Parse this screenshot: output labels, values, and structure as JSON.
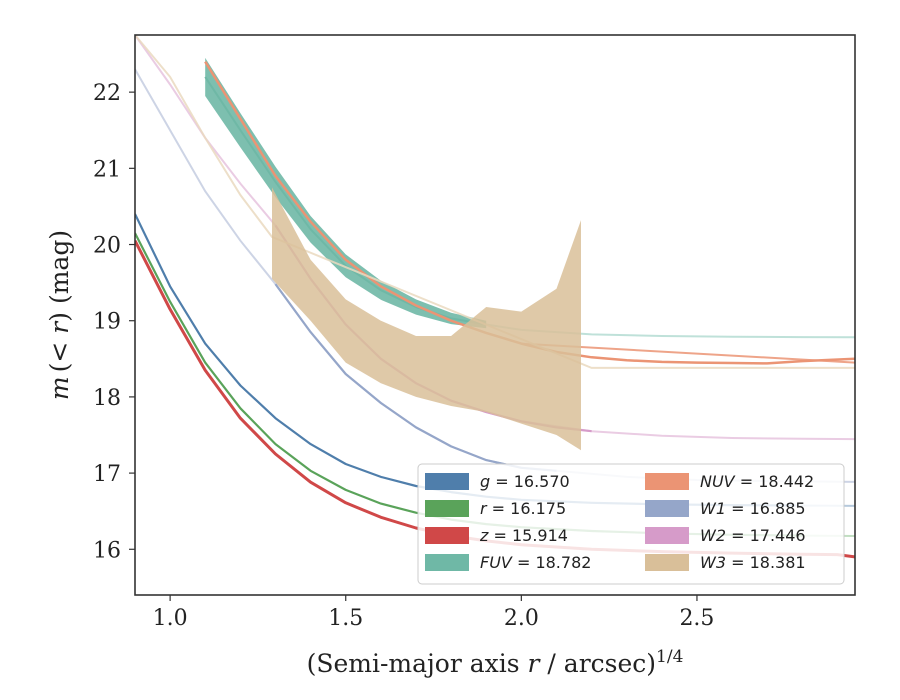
{
  "chart_data": {
    "type": "line",
    "xlabel_text": "(Semi-major axis ",
    "xlabel_r": "r",
    "xlabel_unit": " / arcsec)",
    "xlabel_sup": "1/4",
    "ylabel_m": "m",
    "ylabel_mid": "(< ",
    "ylabel_r": "r",
    "ylabel_unit": ") (mag)",
    "xlim": [
      0.9,
      2.95
    ],
    "ylim": [
      22.75,
      15.4
    ],
    "y_inverted": true,
    "grid": false,
    "legend_position": "lower-right",
    "xticks": [
      1.0,
      1.5,
      2.0,
      2.5
    ],
    "xtick_labels": [
      "1.0",
      "1.5",
      "2.0",
      "2.5"
    ],
    "yticks": [
      16,
      17,
      18,
      19,
      20,
      21,
      22
    ],
    "ytick_labels": [
      "16",
      "17",
      "18",
      "19",
      "20",
      "21",
      "22"
    ],
    "series": [
      {
        "name": "g",
        "label_var": "g",
        "label_val": " = 16.570",
        "color": "#4f7eab",
        "ext_color": "#a8c0d6",
        "width": 2.2,
        "x": [
          0.9,
          1.0,
          1.1,
          1.2,
          1.3,
          1.4,
          1.5,
          1.6,
          1.7,
          1.8,
          1.9,
          2.0,
          2.2,
          2.4,
          2.6,
          2.78
        ],
        "y": [
          20.4,
          19.45,
          18.7,
          18.15,
          17.72,
          17.38,
          17.12,
          16.95,
          16.83,
          16.75,
          16.69,
          16.65,
          16.61,
          16.59,
          16.58,
          16.575
        ],
        "ext_x": [
          2.78,
          2.95
        ],
        "ext_y": [
          16.575,
          16.57
        ]
      },
      {
        "name": "r",
        "label_var": "r",
        "label_val": " = 16.175",
        "color": "#5aa35a",
        "ext_color": "#b6d8b6",
        "width": 2.2,
        "x": [
          0.9,
          1.0,
          1.1,
          1.2,
          1.3,
          1.4,
          1.5,
          1.6,
          1.7,
          1.8,
          1.9,
          2.0,
          2.2,
          2.4,
          2.6,
          2.8
        ],
        "y": [
          20.15,
          19.25,
          18.45,
          17.85,
          17.38,
          17.03,
          16.78,
          16.6,
          16.48,
          16.39,
          16.33,
          16.29,
          16.24,
          16.21,
          16.19,
          16.18
        ],
        "ext_x": [
          2.8,
          2.95
        ],
        "ext_y": [
          16.18,
          16.175
        ]
      },
      {
        "name": "z",
        "label_var": "z",
        "label_val": " = 15.914",
        "color": "#d04848",
        "ext_color": "#d04848",
        "width": 3.0,
        "x": [
          0.9,
          1.0,
          1.1,
          1.2,
          1.3,
          1.4,
          1.5,
          1.6,
          1.7,
          1.8,
          1.9,
          2.0,
          2.2,
          2.4,
          2.6,
          2.8,
          2.9,
          2.95
        ],
        "y": [
          20.05,
          19.15,
          18.35,
          17.72,
          17.25,
          16.88,
          16.61,
          16.42,
          16.28,
          16.18,
          16.11,
          16.06,
          16.0,
          15.97,
          15.95,
          15.935,
          15.93,
          15.9
        ],
        "ext_x": [],
        "ext_y": []
      },
      {
        "name": "FUV",
        "label_var": "FUV",
        "label_val": " = 18.782",
        "color": "#6fb8a6",
        "ext_color": "#b4dcd2",
        "width": 2.0,
        "x": [
          1.1,
          1.2,
          1.3,
          1.4,
          1.5,
          1.6,
          1.7,
          1.8,
          1.9
        ],
        "y": [
          22.2,
          21.5,
          20.82,
          20.2,
          19.72,
          19.4,
          19.18,
          19.03,
          18.95
        ],
        "ext_x": [
          1.9,
          2.0,
          2.2,
          2.4,
          2.6,
          2.8,
          2.95
        ],
        "ext_y": [
          18.95,
          18.88,
          18.82,
          18.8,
          18.79,
          18.785,
          18.782
        ]
      },
      {
        "name": "NUV",
        "label_var": "NUV",
        "label_val": " = 18.442",
        "color": "#eb9474",
        "ext_color": "#eb9474",
        "width": 2.5,
        "x": [
          1.1,
          1.2,
          1.3,
          1.4,
          1.5,
          1.6,
          1.7,
          1.8,
          1.9,
          2.0,
          2.1,
          2.2,
          2.3,
          2.4,
          2.5,
          2.6,
          2.7,
          2.8,
          2.95
        ],
        "y": [
          22.4,
          21.65,
          20.9,
          20.3,
          19.8,
          19.45,
          19.2,
          19.0,
          18.84,
          18.7,
          18.59,
          18.52,
          18.48,
          18.46,
          18.45,
          18.445,
          18.44,
          18.47,
          18.5
        ],
        "ext_x": [
          2.0,
          2.95
        ],
        "ext_y": [
          18.7,
          18.45
        ]
      },
      {
        "name": "W1",
        "label_var": "W1",
        "label_val": " = 16.885",
        "color": "#95a6c9",
        "ext_color": "#c4cde0",
        "width": 2.2,
        "x": [
          1.3,
          1.4,
          1.5,
          1.6,
          1.7,
          1.8,
          1.9,
          2.0,
          2.1
        ],
        "y": [
          19.48,
          18.85,
          18.3,
          17.92,
          17.6,
          17.35,
          17.17,
          17.07,
          17.03
        ],
        "ext_x": [
          0.9,
          1.0,
          1.1,
          1.2,
          1.3,
          1.4,
          1.5,
          1.6,
          1.7,
          1.8,
          1.9,
          2.0,
          2.1,
          2.3,
          2.5,
          2.7,
          2.95
        ],
        "ext_y": [
          22.3,
          21.5,
          20.7,
          20.05,
          19.48,
          18.85,
          18.3,
          17.92,
          17.6,
          17.35,
          17.17,
          17.07,
          17.03,
          16.95,
          16.91,
          16.895,
          16.885
        ]
      },
      {
        "name": "W2",
        "label_var": "W2",
        "label_val": " = 17.446",
        "color": "#d69bc9",
        "ext_color": "#e6c3de",
        "width": 2.2,
        "x": [
          1.3,
          1.4,
          1.5,
          1.6,
          1.7,
          1.8,
          1.9,
          2.0,
          2.1,
          2.2
        ],
        "y": [
          20.25,
          19.55,
          18.95,
          18.5,
          18.18,
          17.95,
          17.8,
          17.68,
          17.6,
          17.55
        ],
        "ext_x": [
          0.9,
          1.0,
          1.1,
          1.2,
          1.3,
          1.4,
          1.5,
          1.6,
          1.7,
          1.8,
          1.9,
          2.0,
          2.2,
          2.4,
          2.6,
          2.8,
          2.95
        ],
        "ext_y": [
          22.75,
          22.1,
          21.4,
          20.8,
          20.25,
          19.55,
          18.95,
          18.5,
          18.18,
          17.95,
          17.8,
          17.68,
          17.55,
          17.49,
          17.46,
          17.45,
          17.446
        ]
      },
      {
        "name": "W3",
        "label_var": "W3",
        "label_val": " = 18.381",
        "color": "#d9bf99",
        "ext_color": "#ead9c0",
        "width": 2.0,
        "band_x": [
          1.29,
          1.4,
          1.5,
          1.6,
          1.7,
          1.8,
          1.9,
          2.0,
          2.1,
          2.17
        ],
        "band_upper": [
          19.55,
          19.0,
          18.45,
          18.18,
          18.0,
          17.88,
          17.8,
          17.65,
          17.5,
          17.3
        ],
        "band_lower": [
          20.75,
          19.8,
          19.28,
          19.0,
          18.8,
          18.8,
          19.18,
          19.12,
          19.42,
          20.32
        ],
        "x": [],
        "y": [],
        "ext_x": [
          0.9,
          1.0,
          1.1,
          1.2,
          1.29,
          2.2,
          2.95
        ],
        "ext_y": [
          22.75,
          22.2,
          21.4,
          20.65,
          20.1,
          18.381,
          18.381
        ]
      }
    ]
  }
}
